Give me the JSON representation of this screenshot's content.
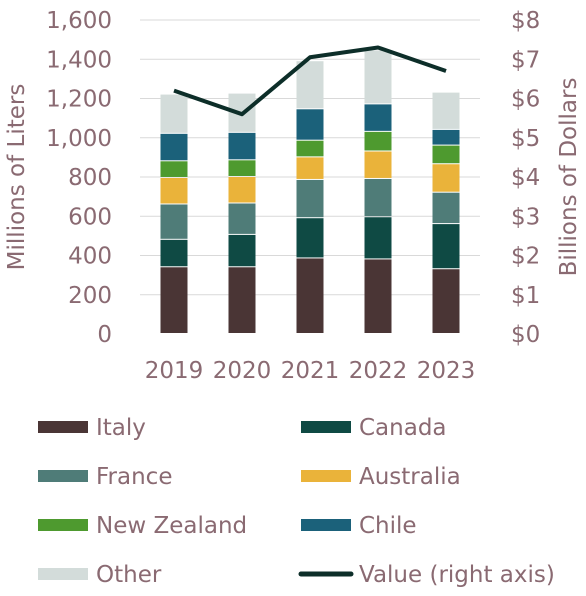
{
  "chart_data": {
    "type": "bar",
    "stacked": true,
    "categories": [
      "2019",
      "2020",
      "2021",
      "2022",
      "2023"
    ],
    "series": [
      {
        "name": "Italy",
        "color": "#4a3535",
        "values": [
          340,
          340,
          385,
          380,
          330
        ]
      },
      {
        "name": "Canada",
        "color": "#0f4a44",
        "values": [
          140,
          165,
          205,
          215,
          230
        ]
      },
      {
        "name": "France",
        "color": "#4f7c78",
        "values": [
          180,
          160,
          195,
          195,
          160
        ]
      },
      {
        "name": "Australia",
        "color": "#eab33a",
        "values": [
          135,
          135,
          115,
          140,
          145
        ]
      },
      {
        "name": "New Zealand",
        "color": "#4e9a2f",
        "values": [
          85,
          85,
          85,
          100,
          95
        ]
      },
      {
        "name": "Chile",
        "color": "#1b617a",
        "values": [
          140,
          140,
          160,
          140,
          80
        ]
      },
      {
        "name": "Other",
        "color": "#d3dcda",
        "values": [
          200,
          200,
          245,
          275,
          190
        ]
      }
    ],
    "line": {
      "name": "Value (right axis)",
      "color": "#0d2e29",
      "values": [
        6.2,
        5.6,
        7.05,
        7.3,
        6.7
      ]
    },
    "y_left": {
      "label": "Millions of Liters",
      "lim": [
        0,
        1600
      ],
      "ticks": [
        "0",
        "200",
        "400",
        "600",
        "800",
        "1,000",
        "1,200",
        "1,400",
        "1,600"
      ]
    },
    "y_right": {
      "label": "Billions of Dollars",
      "lim": [
        0,
        8
      ],
      "ticks": [
        "$0",
        "$1",
        "$2",
        "$3",
        "$4",
        "$5",
        "$6",
        "$7",
        "$8"
      ]
    },
    "grid": true,
    "legend_position": "bottom"
  }
}
